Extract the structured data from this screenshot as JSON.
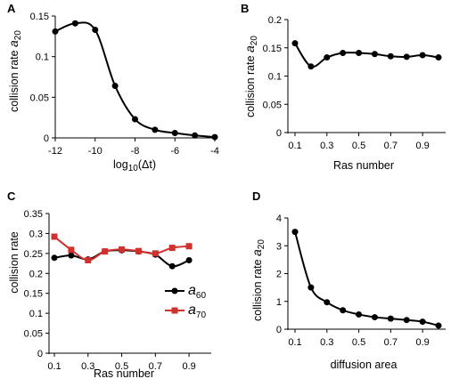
{
  "chart_data": [
    {
      "panel": "A",
      "type": "line",
      "xlabel_main": "log",
      "xlabel_sub": "10",
      "xlabel_rest": "(Δt)",
      "ylabel_main": "collision rate ",
      "ylabel_var": "a",
      "ylabel_sub": "20",
      "xlim": [
        -12,
        -4
      ],
      "ylim": [
        0,
        0.15
      ],
      "xticks": [
        -12,
        -10,
        -8,
        -6,
        -4
      ],
      "xtick_labels": [
        "-12",
        "-10",
        "-8",
        "-6",
        "-4"
      ],
      "yticks": [
        0,
        0.05,
        0.1,
        0.15
      ],
      "ytick_labels": [
        "0",
        "0.05",
        "0.1",
        "0.15"
      ],
      "smooth": true,
      "series": [
        {
          "color": "#000000",
          "marker": "circle",
          "x": [
            -12,
            -11,
            -10,
            -9,
            -8,
            -7,
            -6,
            -5,
            -4
          ],
          "y": [
            0.131,
            0.141,
            0.133,
            0.064,
            0.023,
            0.01,
            0.006,
            0.003,
            0.001
          ]
        }
      ]
    },
    {
      "panel": "B",
      "type": "line",
      "xlabel_main": "Ras number",
      "ylabel_main": "collision rate ",
      "ylabel_var": "a",
      "ylabel_sub": "20",
      "xlim": [
        0.1,
        1.0
      ],
      "ylim": [
        0,
        0.2
      ],
      "xticks": [
        0.1,
        0.3,
        0.5,
        0.7,
        0.9
      ],
      "xtick_labels": [
        "0.1",
        "0.3",
        "0.5",
        "0.7",
        "0.9"
      ],
      "yticks": [
        0,
        0.05,
        0.1,
        0.15,
        0.2
      ],
      "ytick_labels": [
        "0",
        "0.05",
        "0.1",
        "0.15",
        "0.2"
      ],
      "smooth": true,
      "series": [
        {
          "color": "#000000",
          "marker": "circle",
          "x": [
            0.1,
            0.2,
            0.3,
            0.4,
            0.5,
            0.6,
            0.7,
            0.8,
            0.9,
            1.0
          ],
          "y": [
            0.158,
            0.117,
            0.133,
            0.141,
            0.141,
            0.139,
            0.135,
            0.134,
            0.137,
            0.133
          ]
        }
      ]
    },
    {
      "panel": "C",
      "type": "line",
      "xlabel_main": "Ras number",
      "ylabel_main": "collision rate",
      "ylabel_var": "",
      "ylabel_sub": "",
      "xlim": [
        0.1,
        1.0
      ],
      "ylim": [
        0,
        0.35
      ],
      "xticks": [
        0.1,
        0.3,
        0.5,
        0.7,
        0.9
      ],
      "xtick_labels": [
        "0.1",
        "0.3",
        "0.5",
        "0.7",
        "0.9"
      ],
      "yticks": [
        0,
        0.05,
        0.1,
        0.15,
        0.2,
        0.25,
        0.3,
        0.35
      ],
      "ytick_labels": [
        "0",
        "0.05",
        "0.1",
        "0.15",
        "0.2",
        "0.25",
        "0.3",
        "0.35"
      ],
      "smooth": true,
      "legend_position": "bottom-right",
      "series": [
        {
          "name_var": "a",
          "name_sub": "60",
          "color": "#000000",
          "marker": "circle",
          "x": [
            0.1,
            0.2,
            0.3,
            0.4,
            0.5,
            0.6,
            0.7,
            0.8,
            0.9
          ],
          "y": [
            0.239,
            0.245,
            0.235,
            0.255,
            0.258,
            0.255,
            0.247,
            0.218,
            0.233
          ]
        },
        {
          "name_var": "a",
          "name_sub": "70",
          "color": "#d0312d",
          "marker": "square",
          "x": [
            0.1,
            0.2,
            0.3,
            0.4,
            0.5,
            0.6,
            0.7,
            0.8,
            0.9
          ],
          "y": [
            0.292,
            0.259,
            0.233,
            0.255,
            0.26,
            0.256,
            0.25,
            0.264,
            0.268
          ]
        }
      ]
    },
    {
      "panel": "D",
      "type": "line",
      "xlabel_main": "diffusion area",
      "ylabel_main": "collision rate ",
      "ylabel_var": "a",
      "ylabel_sub": "20",
      "xlim": [
        0.1,
        1.0
      ],
      "ylim": [
        0,
        4
      ],
      "xticks": [
        0.1,
        0.3,
        0.5,
        0.7,
        0.9
      ],
      "xtick_labels": [
        "0.1",
        "0.3",
        "0.5",
        "0.7",
        "0.9"
      ],
      "yticks": [
        0,
        1,
        2,
        3,
        4
      ],
      "ytick_labels": [
        "0",
        "1",
        "2",
        "3",
        "4"
      ],
      "smooth": true,
      "series": [
        {
          "color": "#000000",
          "marker": "circle",
          "x": [
            0.1,
            0.2,
            0.3,
            0.4,
            0.5,
            0.6,
            0.7,
            0.8,
            0.9,
            1.0
          ],
          "y": [
            3.5,
            1.5,
            0.97,
            0.68,
            0.53,
            0.43,
            0.38,
            0.33,
            0.27,
            0.13
          ]
        }
      ]
    }
  ]
}
